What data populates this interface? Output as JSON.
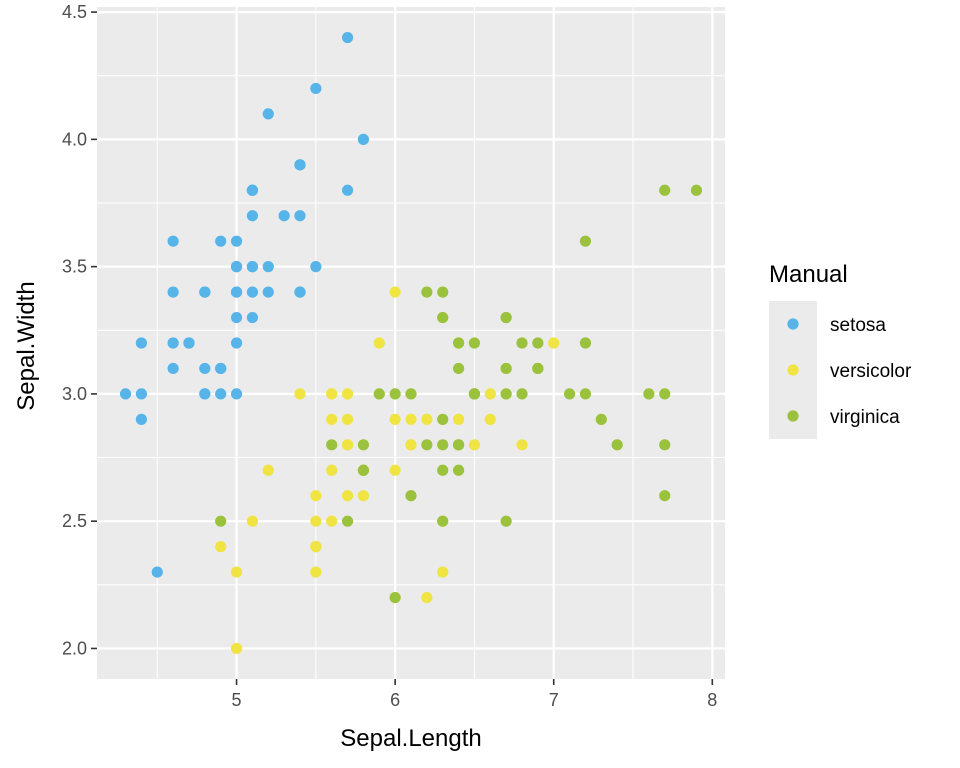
{
  "chart_data": {
    "type": "scatter",
    "title": "",
    "xlabel": "Sepal.Length",
    "ylabel": "Sepal.Width",
    "xlim": [
      4.12,
      8.08
    ],
    "ylim": [
      1.88,
      4.52
    ],
    "x_ticks": [
      5,
      6,
      7,
      8
    ],
    "x_tick_labels": [
      "5",
      "6",
      "7",
      "8"
    ],
    "y_ticks": [
      2.0,
      2.5,
      3.0,
      3.5,
      4.0,
      4.5
    ],
    "y_tick_labels": [
      "2.0",
      "2.5",
      "3.0",
      "3.5",
      "4.0",
      "4.5"
    ],
    "grid": true,
    "panel_background": "#ebebeb",
    "grid_color": "#ffffff",
    "legend": {
      "title": "Manual",
      "placement": "right"
    },
    "series": [
      {
        "name": "setosa",
        "color": "#56B4E9",
        "x": [
          5.1,
          4.9,
          4.7,
          4.6,
          5.0,
          5.4,
          4.6,
          5.0,
          4.4,
          4.9,
          5.4,
          4.8,
          4.8,
          4.3,
          5.8,
          5.7,
          5.4,
          5.1,
          5.7,
          5.1,
          5.4,
          5.1,
          4.6,
          5.1,
          4.8,
          5.0,
          5.0,
          5.2,
          5.2,
          4.7,
          4.8,
          5.4,
          5.2,
          5.5,
          4.9,
          5.0,
          5.5,
          4.9,
          4.4,
          5.1,
          5.0,
          4.5,
          4.4,
          5.0,
          5.1,
          4.8,
          5.1,
          4.6,
          5.3,
          5.0
        ],
        "y": [
          3.5,
          3.0,
          3.2,
          3.1,
          3.6,
          3.9,
          3.4,
          3.4,
          2.9,
          3.1,
          3.7,
          3.4,
          3.0,
          3.0,
          4.0,
          4.4,
          3.9,
          3.5,
          3.8,
          3.8,
          3.4,
          3.7,
          3.6,
          3.3,
          3.4,
          3.0,
          3.4,
          3.5,
          3.4,
          3.2,
          3.1,
          3.4,
          4.1,
          4.2,
          3.1,
          3.2,
          3.5,
          3.6,
          3.0,
          3.4,
          3.5,
          2.3,
          3.2,
          3.5,
          3.8,
          3.0,
          3.8,
          3.2,
          3.7,
          3.3
        ]
      },
      {
        "name": "versicolor",
        "color": "#F0E442",
        "x": [
          7.0,
          6.4,
          6.9,
          5.5,
          6.5,
          5.7,
          6.3,
          4.9,
          6.6,
          5.2,
          5.0,
          5.9,
          6.0,
          6.1,
          5.6,
          6.7,
          5.6,
          5.8,
          6.2,
          5.6,
          5.9,
          6.1,
          6.3,
          6.1,
          6.4,
          6.6,
          6.8,
          6.7,
          6.0,
          5.7,
          5.5,
          5.5,
          5.8,
          6.0,
          5.4,
          6.0,
          6.7,
          6.3,
          5.6,
          5.5,
          5.5,
          6.1,
          5.8,
          5.0,
          5.6,
          5.7,
          5.7,
          6.2,
          5.1,
          5.7
        ],
        "y": [
          3.2,
          3.2,
          3.1,
          2.3,
          2.8,
          2.8,
          3.3,
          2.4,
          2.9,
          2.7,
          2.0,
          3.0,
          2.2,
          2.9,
          2.9,
          3.1,
          3.0,
          2.7,
          2.2,
          2.5,
          3.2,
          2.8,
          2.5,
          2.8,
          2.9,
          3.0,
          2.8,
          3.0,
          2.9,
          2.6,
          2.4,
          2.4,
          2.7,
          2.7,
          3.0,
          3.4,
          3.1,
          2.3,
          3.0,
          2.5,
          2.6,
          3.0,
          2.6,
          2.3,
          2.7,
          3.0,
          2.9,
          2.9,
          2.5,
          2.8
        ]
      },
      {
        "name": "virginica",
        "color": "#9AC23C",
        "x": [
          6.3,
          5.8,
          7.1,
          6.3,
          6.5,
          7.6,
          4.9,
          7.3,
          6.7,
          7.2,
          6.5,
          6.4,
          6.8,
          5.7,
          5.8,
          6.4,
          6.5,
          7.7,
          7.7,
          6.0,
          6.9,
          5.6,
          7.7,
          6.3,
          6.7,
          7.2,
          6.2,
          6.1,
          6.4,
          7.2,
          7.4,
          7.9,
          6.4,
          6.3,
          6.1,
          7.7,
          6.3,
          6.4,
          6.0,
          6.9,
          6.7,
          6.9,
          5.8,
          6.8,
          6.7,
          6.7,
          6.3,
          6.5,
          6.2,
          5.9
        ],
        "y": [
          3.3,
          2.7,
          3.0,
          2.9,
          3.0,
          3.0,
          2.5,
          2.9,
          2.5,
          3.6,
          3.2,
          2.7,
          3.0,
          2.5,
          2.8,
          3.2,
          3.0,
          3.8,
          2.6,
          2.2,
          3.2,
          2.8,
          2.8,
          2.7,
          3.3,
          3.2,
          2.8,
          3.0,
          2.8,
          3.0,
          2.8,
          3.8,
          2.8,
          2.8,
          2.6,
          3.0,
          3.4,
          3.1,
          3.0,
          3.1,
          3.1,
          3.1,
          2.7,
          3.2,
          3.3,
          3.0,
          2.5,
          3.0,
          3.4,
          3.0
        ]
      }
    ]
  }
}
